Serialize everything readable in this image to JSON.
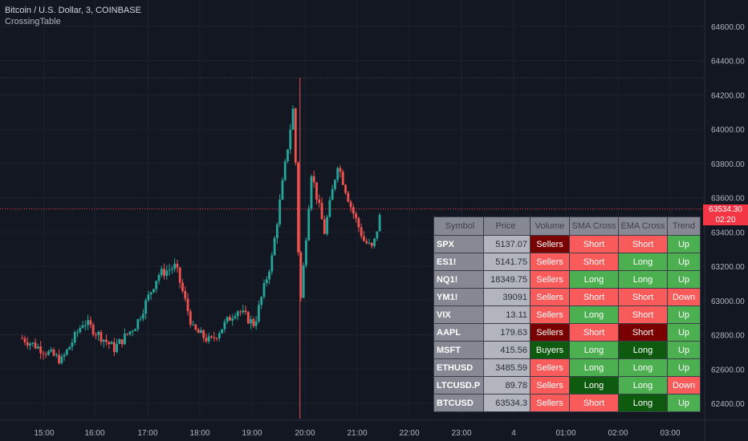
{
  "header": {
    "title": "Bitcoin / U.S. Dollar, 3, COINBASE",
    "indicator": "CrossingTable"
  },
  "price_label": {
    "price": "63534.30",
    "countdown": "02:20"
  },
  "colors": {
    "up": "#26a69a",
    "down": "#ef5350",
    "bg": "#131722",
    "light_red": "#f95b5b",
    "dark_red": "#7a0000",
    "light_green": "#4caf50",
    "dark_green": "#0e5a0e",
    "price_line": "#f23645"
  },
  "chart_data": {
    "type": "candlestick",
    "y_ticks": [
      "64600.00",
      "64400.00",
      "64200.00",
      "64000.00",
      "63800.00",
      "63600.00",
      "63400.00",
      "63200.00",
      "63000.00",
      "62800.00",
      "62600.00",
      "62400.00"
    ],
    "x_ticks": [
      "15:00",
      "16:00",
      "17:00",
      "18:00",
      "19:00",
      "20:00",
      "21:00",
      "22:00",
      "23:00",
      "4",
      "01:00",
      "02:00",
      "03:00"
    ],
    "ylim": [
      62300,
      64700
    ],
    "current_price": 63534.3,
    "high_line": 64300,
    "close_path": [
      {
        "t": "14:35",
        "v": 62780
      },
      {
        "t": "15:20",
        "v": 62650
      },
      {
        "t": "15:45",
        "v": 62880
      },
      {
        "t": "16:20",
        "v": 62720
      },
      {
        "t": "16:45",
        "v": 62860
      },
      {
        "t": "17:10",
        "v": 63150
      },
      {
        "t": "17:30",
        "v": 63200
      },
      {
        "t": "17:50",
        "v": 62830
      },
      {
        "t": "18:10",
        "v": 62760
      },
      {
        "t": "18:40",
        "v": 62950
      },
      {
        "t": "19:00",
        "v": 62860
      },
      {
        "t": "19:20",
        "v": 63250
      },
      {
        "t": "19:45",
        "v": 64150
      },
      {
        "t": "19:52",
        "v": 62950
      },
      {
        "t": "20:05",
        "v": 63750
      },
      {
        "t": "20:20",
        "v": 63400
      },
      {
        "t": "20:35",
        "v": 63800
      },
      {
        "t": "20:50",
        "v": 63550
      },
      {
        "t": "21:05",
        "v": 63350
      },
      {
        "t": "21:15",
        "v": 63300
      },
      {
        "t": "21:25",
        "v": 63534
      }
    ]
  },
  "table": {
    "headers": [
      "Symbol",
      "Price",
      "Volume",
      "SMA Cross",
      "EMA Cross",
      "Trend"
    ],
    "rows": [
      {
        "symbol": "SPX",
        "price": "5137.07",
        "volume": "Sellers",
        "sma": "Short",
        "ema": "Short",
        "trend": "Up",
        "vc": "dark_red",
        "sc": "light_red",
        "ec": "light_red",
        "tc": "light_green"
      },
      {
        "symbol": "ES1!",
        "price": "5141.75",
        "volume": "Sellers",
        "sma": "Short",
        "ema": "Long",
        "trend": "Up",
        "vc": "light_red",
        "sc": "light_red",
        "ec": "light_green",
        "tc": "light_green"
      },
      {
        "symbol": "NQ1!",
        "price": "18349.75",
        "volume": "Sellers",
        "sma": "Long",
        "ema": "Long",
        "trend": "Up",
        "vc": "light_red",
        "sc": "light_green",
        "ec": "light_green",
        "tc": "light_green"
      },
      {
        "symbol": "YM1!",
        "price": "39091",
        "volume": "Sellers",
        "sma": "Short",
        "ema": "Short",
        "trend": "Down",
        "vc": "light_red",
        "sc": "light_red",
        "ec": "light_red",
        "tc": "light_red"
      },
      {
        "symbol": "VIX",
        "price": "13.11",
        "volume": "Sellers",
        "sma": "Long",
        "ema": "Short",
        "trend": "Up",
        "vc": "light_red",
        "sc": "light_green",
        "ec": "light_red",
        "tc": "light_green"
      },
      {
        "symbol": "AAPL",
        "price": "179.63",
        "volume": "Sellers",
        "sma": "Short",
        "ema": "Short",
        "trend": "Up",
        "vc": "dark_red",
        "sc": "light_red",
        "ec": "dark_red",
        "tc": "light_green"
      },
      {
        "symbol": "MSFT",
        "price": "415.56",
        "volume": "Buyers",
        "sma": "Long",
        "ema": "Long",
        "trend": "Up",
        "vc": "dark_green",
        "sc": "light_green",
        "ec": "dark_green",
        "tc": "light_green"
      },
      {
        "symbol": "ETHUSD",
        "price": "3485.59",
        "volume": "Sellers",
        "sma": "Long",
        "ema": "Long",
        "trend": "Up",
        "vc": "light_red",
        "sc": "light_green",
        "ec": "light_green",
        "tc": "light_green"
      },
      {
        "symbol": "LTCUSD.P",
        "price": "89.78",
        "volume": "Sellers",
        "sma": "Long",
        "ema": "Long",
        "trend": "Down",
        "vc": "light_red",
        "sc": "dark_green",
        "ec": "light_green",
        "tc": "light_red"
      },
      {
        "symbol": "BTCUSD",
        "price": "63534.3",
        "volume": "Sellers",
        "sma": "Short",
        "ema": "Long",
        "trend": "Up",
        "vc": "light_red",
        "sc": "light_red",
        "ec": "dark_green",
        "tc": "light_green"
      }
    ]
  }
}
